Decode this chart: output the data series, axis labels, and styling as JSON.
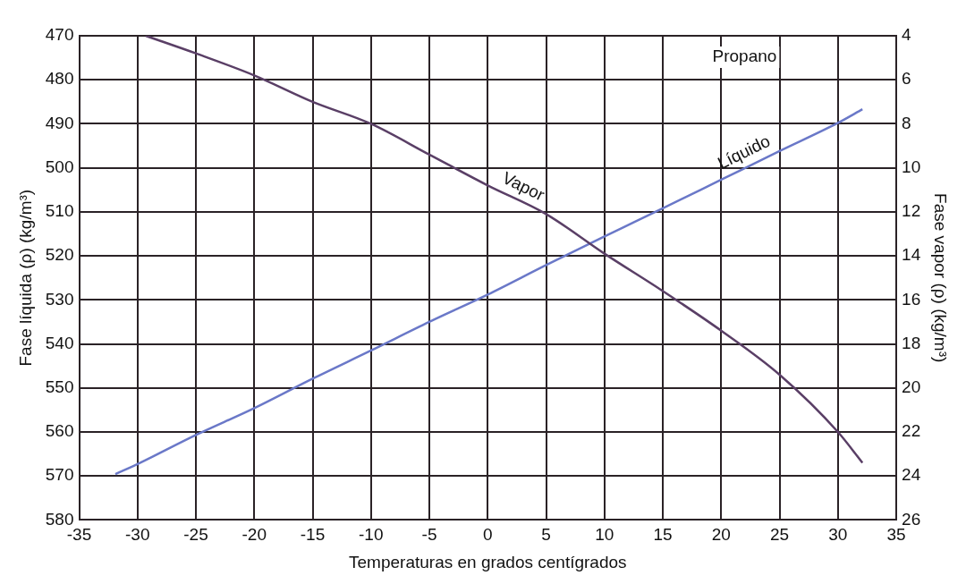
{
  "chart_data": {
    "type": "line",
    "xlabel": "Temperaturas en grados centígrados",
    "ylabel": "Fase líquida (ρ) (kg/m³)",
    "y2label": "Fase vapor (ρ) (kg/m³)",
    "annotations": [
      "Propano"
    ],
    "xlim": [
      -35,
      35
    ],
    "xticks": [
      -35,
      -30,
      -25,
      -20,
      -15,
      -10,
      -5,
      0,
      5,
      10,
      15,
      20,
      25,
      30,
      35
    ],
    "ylim": [
      580,
      470
    ],
    "yticks": [
      470,
      480,
      490,
      500,
      510,
      520,
      530,
      540,
      550,
      560,
      570,
      580
    ],
    "y2lim": [
      26,
      4
    ],
    "y2ticks": [
      4,
      6,
      8,
      10,
      12,
      14,
      16,
      18,
      20,
      22,
      24,
      26
    ],
    "grid": true,
    "series": [
      {
        "name": "Vapor",
        "color": "#5a3f66",
        "axis": "y2",
        "x": [
          -29.3,
          -25,
          -20,
          -15,
          -10,
          -5,
          0,
          5,
          10,
          15,
          20,
          25,
          30,
          32.1
        ],
        "values": [
          4.0,
          4.8,
          5.8,
          7.0,
          8.0,
          9.4,
          10.8,
          12.1,
          13.9,
          15.6,
          17.4,
          19.4,
          22.0,
          23.4
        ]
      },
      {
        "name": "Líquido",
        "color": "#6a78c8",
        "x": [
          -31.9,
          -30,
          -25,
          -20,
          -15,
          -10,
          -5,
          0,
          5,
          10,
          15,
          20,
          25,
          30,
          32.1
        ],
        "values": [
          569.6,
          567.3,
          560.7,
          554.6,
          547.9,
          541.5,
          535,
          528.8,
          522.1,
          515.6,
          509.2,
          502.7,
          496.2,
          489.8,
          486.7
        ]
      }
    ]
  }
}
